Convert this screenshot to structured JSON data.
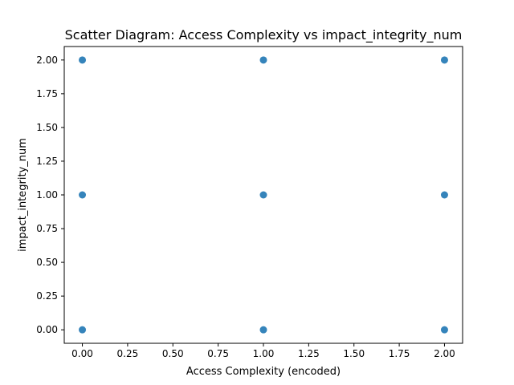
{
  "chart_data": {
    "type": "scatter",
    "title": "Scatter Diagram: Access Complexity vs impact_integrity_num",
    "xlabel": "Access Complexity (encoded)",
    "ylabel": "impact_integrity_num",
    "xlim": [
      -0.1,
      2.1
    ],
    "ylim": [
      -0.1,
      2.1
    ],
    "xticks": [
      "0.00",
      "0.25",
      "0.50",
      "0.75",
      "1.00",
      "1.25",
      "1.50",
      "1.75",
      "2.00"
    ],
    "yticks": [
      "0.00",
      "0.25",
      "0.50",
      "0.75",
      "1.00",
      "1.25",
      "1.50",
      "1.75",
      "2.00"
    ],
    "grid": false,
    "marker_color": "#1f77b4",
    "points": [
      {
        "x": 0,
        "y": 0
      },
      {
        "x": 0,
        "y": 1
      },
      {
        "x": 0,
        "y": 2
      },
      {
        "x": 1,
        "y": 0
      },
      {
        "x": 1,
        "y": 1
      },
      {
        "x": 1,
        "y": 2
      },
      {
        "x": 2,
        "y": 0
      },
      {
        "x": 2,
        "y": 1
      },
      {
        "x": 2,
        "y": 2
      }
    ]
  }
}
